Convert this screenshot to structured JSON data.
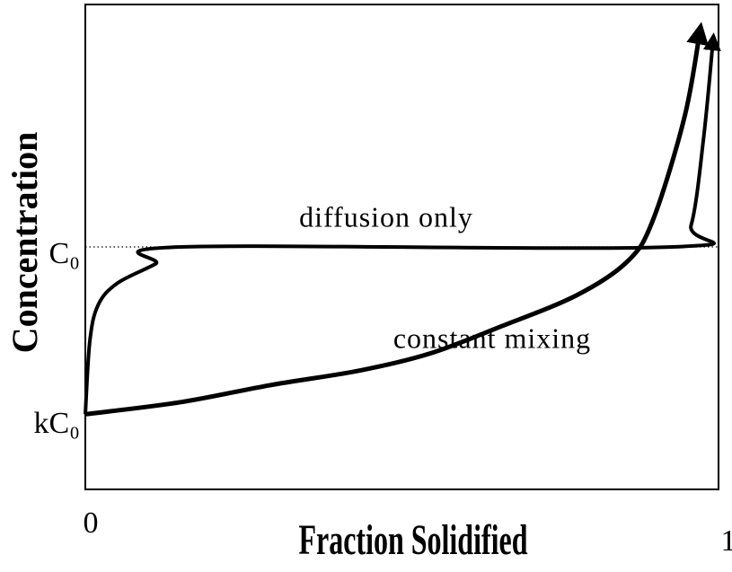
{
  "chart_data": {
    "type": "line",
    "xlabel": "Fraction Solidified",
    "ylabel": "Concentration",
    "xlim": [
      0,
      1
    ],
    "xticks": [
      0,
      1
    ],
    "ylim": [
      0,
      2
    ],
    "yticks": [
      {
        "value": 0.3,
        "label": "kC₀"
      },
      {
        "value": 1,
        "label": "C₀"
      }
    ],
    "annotations": [
      "diffusion only",
      "constant mixing"
    ],
    "series": [
      {
        "name": "diffusion only",
        "color": "#000000",
        "x": [
          0,
          0.007,
          0.02,
          0.05,
          0.11,
          0.15,
          0.92,
          0.95,
          0.97,
          0.985
        ],
        "values": [
          0.31,
          0.61,
          0.76,
          0.85,
          0.93,
          1.0,
          1.0,
          1.09,
          1.46,
          1.87
        ]
      },
      {
        "name": "constant mixing",
        "color": "#000000",
        "x": [
          0,
          0.15,
          0.29,
          0.43,
          0.54,
          0.65,
          0.77,
          0.85,
          0.89,
          0.94,
          0.965
        ],
        "values": [
          0.31,
          0.36,
          0.43,
          0.49,
          0.56,
          0.67,
          0.8,
          0.94,
          1.11,
          1.54,
          1.91
        ]
      }
    ]
  }
}
